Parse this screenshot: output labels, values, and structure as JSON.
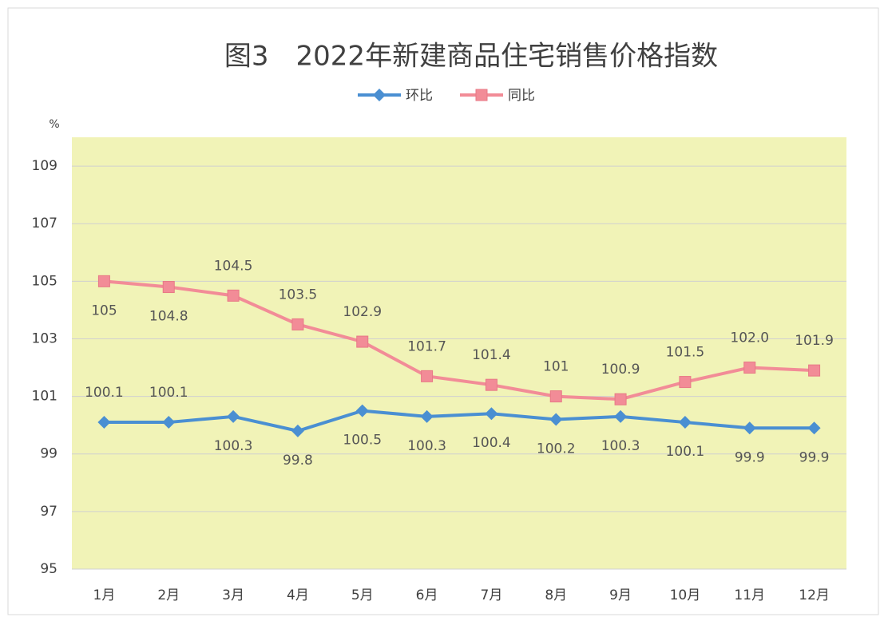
{
  "chart_data": {
    "type": "line",
    "title": "图3　2022年新建商品住宅销售价格指数",
    "y_unit": "%",
    "categories": [
      "1月",
      "2月",
      "3月",
      "4月",
      "5月",
      "6月",
      "7月",
      "8月",
      "9月",
      "10月",
      "11月",
      "12月"
    ],
    "series": [
      {
        "name": "环比",
        "color": "#4a8fd2",
        "marker": "diamond",
        "values": [
          100.1,
          100.1,
          100.3,
          99.8,
          100.5,
          100.3,
          100.4,
          100.2,
          100.3,
          100.1,
          99.9,
          99.9
        ]
      },
      {
        "name": "同比",
        "color": "#f28c97",
        "marker": "square",
        "values": [
          105,
          104.8,
          104.5,
          103.5,
          102.9,
          101.7,
          101.4,
          101,
          100.9,
          101.5,
          102,
          101.9
        ],
        "value_labels": [
          "105",
          "104.8",
          "104.5",
          "103.5",
          "102.9",
          "101.7",
          "101.4",
          "101",
          "100.9",
          "101.5",
          "102.0",
          "101.9"
        ]
      }
    ],
    "ylim": [
      95,
      110
    ],
    "yticks": [
      95,
      97,
      99,
      101,
      103,
      105,
      107,
      109
    ],
    "grid": true,
    "legend": "top",
    "plot_background": "#f1f3b7"
  }
}
